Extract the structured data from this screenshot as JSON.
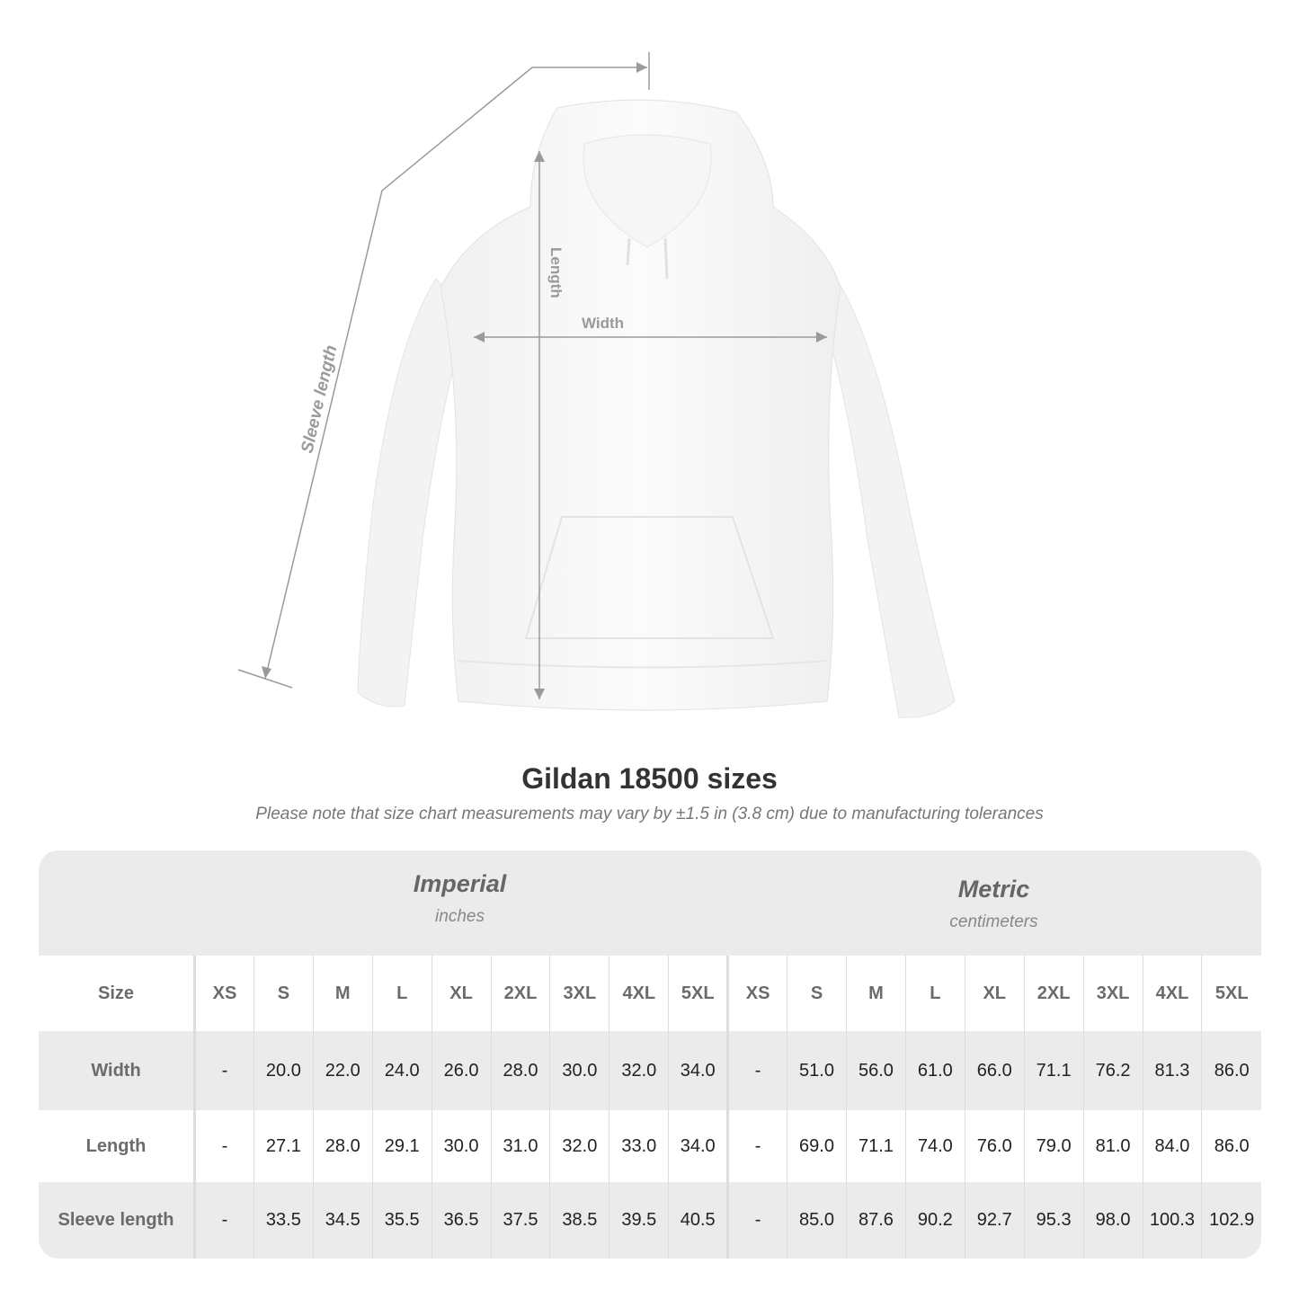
{
  "illustration": {
    "labels": {
      "sleeve": "Sleeve length",
      "length": "Length",
      "width": "Width"
    },
    "line_color": "#9a9a9a"
  },
  "title": "Gildan 18500 sizes",
  "subtitle": "Please note that size chart measurements may vary by ±1.5 in (3.8 cm) due to manufacturing tolerances",
  "table": {
    "imperial": {
      "name": "Imperial",
      "unit": "inches"
    },
    "metric": {
      "name": "Metric",
      "unit": "centimeters"
    },
    "size_label": "Size",
    "sizes": [
      "XS",
      "S",
      "M",
      "L",
      "XL",
      "2XL",
      "3XL",
      "4XL",
      "5XL"
    ],
    "rows": [
      {
        "label": "Width",
        "imperial": [
          "-",
          "20.0",
          "22.0",
          "24.0",
          "26.0",
          "28.0",
          "30.0",
          "32.0",
          "34.0"
        ],
        "metric": [
          "-",
          "51.0",
          "56.0",
          "61.0",
          "66.0",
          "71.1",
          "76.2",
          "81.3",
          "86.0"
        ]
      },
      {
        "label": "Length",
        "imperial": [
          "-",
          "27.1",
          "28.0",
          "29.1",
          "30.0",
          "31.0",
          "32.0",
          "33.0",
          "34.0"
        ],
        "metric": [
          "-",
          "69.0",
          "71.1",
          "74.0",
          "76.0",
          "79.0",
          "81.0",
          "84.0",
          "86.0"
        ]
      },
      {
        "label": "Sleeve length",
        "imperial": [
          "-",
          "33.5",
          "34.5",
          "35.5",
          "36.5",
          "37.5",
          "38.5",
          "39.5",
          "40.5"
        ],
        "metric": [
          "-",
          "85.0",
          "87.6",
          "90.2",
          "92.7",
          "95.3",
          "98.0",
          "100.3",
          "102.9"
        ]
      }
    ]
  }
}
